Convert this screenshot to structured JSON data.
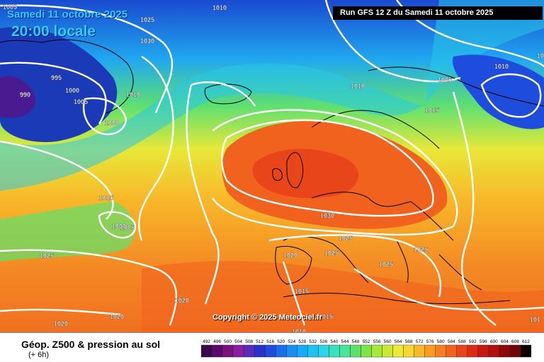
{
  "header": {
    "date": "Samedi 11 octobre 2025",
    "local_time": "20:00 locale",
    "run": "Run GFS 12 Z du Samedi 11 octobre 2025"
  },
  "map": {
    "copyright": "Copyright © 2025 Meteociel.fr",
    "isobar_labels": [
      "1005",
      "1025",
      "1010",
      "1030",
      "995",
      "990",
      "1000",
      "1005",
      "1010",
      "1000",
      "1015",
      "1005",
      "1000",
      "1010",
      "1005",
      "1015",
      "1010",
      "1005",
      "1025",
      "1030",
      "1020",
      "1025",
      "1025",
      "1025",
      "1025",
      "1015",
      "1020",
      "1010",
      "1020",
      "1020",
      "1015",
      "101"
    ]
  },
  "footer": {
    "title": "Géop. Z500 & pression au sol",
    "subtitle": "(+ 6h)"
  },
  "legend": {
    "values": [
      "492",
      "496",
      "500",
      "504",
      "508",
      "512",
      "516",
      "520",
      "524",
      "528",
      "532",
      "536",
      "540",
      "544",
      "548",
      "552",
      "556",
      "560",
      "564",
      "568",
      "572",
      "576",
      "580",
      "584",
      "588",
      "592",
      "596",
      "600",
      "604",
      "608",
      "612"
    ],
    "colors": [
      "#3a0a4a",
      "#5a0a6e",
      "#7a127e",
      "#8a1ea0",
      "#5a2ab8",
      "#2a32c8",
      "#1e4cdc",
      "#1a6ee6",
      "#1a8ef0",
      "#18aaf4",
      "#20c2f2",
      "#2ad6e8",
      "#3ae0c0",
      "#4ae49a",
      "#5ce26c",
      "#80e448",
      "#a8e83a",
      "#cce836",
      "#ecea34",
      "#f8d830",
      "#f8b82a",
      "#f89c26",
      "#f47e22",
      "#f0621e",
      "#e8461a",
      "#dc2c16",
      "#c81812",
      "#b0100e",
      "#90080a",
      "#700406",
      "#100000"
    ]
  }
}
